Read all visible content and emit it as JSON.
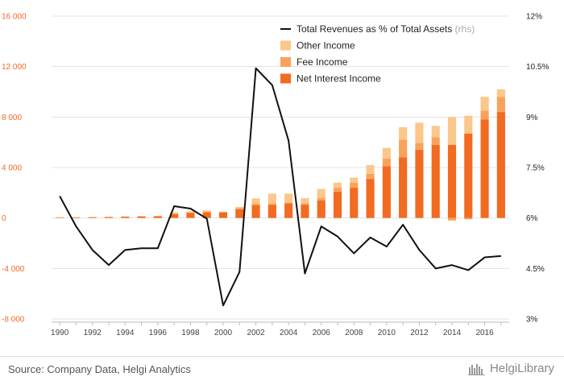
{
  "chart_data": {
    "type": "bar",
    "stacked": true,
    "categories": [
      "1990",
      "1991",
      "1992",
      "1993",
      "1994",
      "1995",
      "1996",
      "1997",
      "1998",
      "1999",
      "2000",
      "2001",
      "2002",
      "2003",
      "2004",
      "2005",
      "2006",
      "2007",
      "2008",
      "2009",
      "2010",
      "2011",
      "2012",
      "2013",
      "2014",
      "2015",
      "2016",
      "2017"
    ],
    "x_tick_labels": [
      "1990",
      "1992",
      "1994",
      "1996",
      "1998",
      "2000",
      "2002",
      "2004",
      "2006",
      "2008",
      "2010",
      "2012",
      "2014",
      "2016"
    ],
    "y_left": {
      "range": [
        -8000,
        16000
      ],
      "ticks": [
        -8000,
        -4000,
        0,
        4000,
        8000,
        12000,
        16000
      ],
      "tick_labels": [
        "-8 000",
        "-4 000",
        "0",
        "4 000",
        "8 000",
        "12 000",
        "16 000"
      ]
    },
    "y_right": {
      "range": [
        3,
        12
      ],
      "ticks": [
        3,
        4.5,
        6,
        7.5,
        9,
        10.5,
        12
      ],
      "tick_labels": [
        "3%",
        "4.5%",
        "6%",
        "7.5%",
        "9%",
        "10.5%",
        "12%"
      ]
    },
    "series": [
      {
        "name": "Net Interest Income",
        "color": "#f26b21",
        "values": [
          50,
          60,
          70,
          80,
          100,
          120,
          140,
          300,
          400,
          450,
          450,
          700,
          1000,
          1050,
          1150,
          1050,
          1400,
          2100,
          2400,
          3100,
          4100,
          4800,
          5400,
          5800,
          5800,
          6700,
          7800,
          8400
        ]
      },
      {
        "name": "Fee Income",
        "color": "#f9a25c",
        "values": [
          10,
          10,
          10,
          15,
          20,
          20,
          20,
          50,
          50,
          60,
          30,
          100,
          150,
          80,
          80,
          120,
          200,
          300,
          400,
          400,
          600,
          1400,
          550,
          600,
          -200,
          -100,
          700,
          1200
        ]
      },
      {
        "name": "Other Income",
        "color": "#fbc78b",
        "values": [
          10,
          10,
          10,
          15,
          20,
          20,
          20,
          100,
          80,
          100,
          0,
          80,
          400,
          800,
          700,
          400,
          700,
          400,
          400,
          700,
          850,
          1000,
          1600,
          900,
          2200,
          1400,
          1100,
          600
        ]
      },
      {
        "name": "Total Revenues as % of Total Assets",
        "axis": "right",
        "type": "line",
        "color": "#111111",
        "values": [
          6.65,
          5.75,
          5.05,
          4.6,
          5.05,
          5.1,
          5.1,
          6.35,
          6.28,
          5.98,
          3.4,
          4.4,
          10.45,
          9.95,
          8.3,
          4.35,
          5.75,
          5.45,
          4.95,
          5.42,
          5.15,
          5.8,
          5.05,
          4.5,
          4.6,
          4.45,
          4.83,
          4.87
        ]
      }
    ],
    "legend": {
      "placement": "top-right",
      "entries": [
        {
          "label": "Total Revenues as % of Total Assets",
          "suffix": "(rhs)",
          "kind": "line",
          "color": "#111111"
        },
        {
          "label": "Other Income",
          "kind": "box",
          "color": "#fbc78b"
        },
        {
          "label": "Fee Income",
          "kind": "box",
          "color": "#f9a25c"
        },
        {
          "label": "Net Interest Income",
          "kind": "box",
          "color": "#f26b21"
        }
      ]
    },
    "grid": {
      "horizontal": true,
      "vertical": false
    }
  },
  "footer": {
    "source": "Source: Company Data, Helgi Analytics",
    "brand": "HelgiLibrary"
  }
}
